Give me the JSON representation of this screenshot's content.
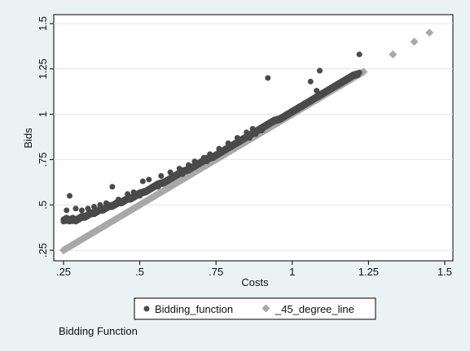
{
  "chart_data": {
    "type": "scatter",
    "xlabel": "Costs",
    "ylabel": "Bids",
    "note": "Bidding Function",
    "xlim": [
      0.25,
      1.5
    ],
    "ylim": [
      0.25,
      1.5
    ],
    "x_ticks": [
      0.25,
      0.5,
      0.75,
      1,
      1.25,
      1.5
    ],
    "x_tick_labels": [
      ".25",
      ".5",
      ".75",
      "1",
      "1.25",
      "1.5"
    ],
    "y_ticks": [
      0.25,
      0.5,
      0.75,
      1,
      1.25,
      1.5
    ],
    "y_tick_labels": [
      ".25",
      ".5",
      ".75",
      "1",
      "1.25",
      "1.5"
    ],
    "grid": "horizontal",
    "legend_position": "bottom",
    "series": [
      {
        "name": "Bidding_function",
        "marker": "circle",
        "color": "#4a4a4a",
        "points": [
          [
            0.25,
            0.42
          ],
          [
            0.26,
            0.43
          ],
          [
            0.27,
            0.42
          ],
          [
            0.28,
            0.43
          ],
          [
            0.29,
            0.42
          ],
          [
            0.3,
            0.43
          ],
          [
            0.31,
            0.44
          ],
          [
            0.32,
            0.44
          ],
          [
            0.33,
            0.45
          ],
          [
            0.34,
            0.46
          ],
          [
            0.35,
            0.46
          ],
          [
            0.36,
            0.47
          ],
          [
            0.37,
            0.48
          ],
          [
            0.38,
            0.48
          ],
          [
            0.39,
            0.49
          ],
          [
            0.4,
            0.5
          ],
          [
            0.41,
            0.5
          ],
          [
            0.42,
            0.51
          ],
          [
            0.43,
            0.52
          ],
          [
            0.44,
            0.52
          ],
          [
            0.45,
            0.53
          ],
          [
            0.46,
            0.54
          ],
          [
            0.47,
            0.54
          ],
          [
            0.48,
            0.55
          ],
          [
            0.49,
            0.56
          ],
          [
            0.5,
            0.57
          ],
          [
            0.52,
            0.58
          ],
          [
            0.54,
            0.6
          ],
          [
            0.56,
            0.62
          ],
          [
            0.58,
            0.63
          ],
          [
            0.6,
            0.65
          ],
          [
            0.62,
            0.67
          ],
          [
            0.64,
            0.69
          ],
          [
            0.66,
            0.7
          ],
          [
            0.68,
            0.72
          ],
          [
            0.7,
            0.74
          ],
          [
            0.72,
            0.76
          ],
          [
            0.74,
            0.77
          ],
          [
            0.76,
            0.79
          ],
          [
            0.78,
            0.81
          ],
          [
            0.8,
            0.83
          ],
          [
            0.82,
            0.85
          ],
          [
            0.84,
            0.87
          ],
          [
            0.86,
            0.89
          ],
          [
            0.88,
            0.91
          ],
          [
            0.9,
            0.93
          ],
          [
            0.92,
            0.95
          ],
          [
            0.94,
            0.97
          ],
          [
            0.96,
            0.98
          ],
          [
            0.98,
            1.0
          ],
          [
            1.0,
            1.02
          ],
          [
            1.02,
            1.04
          ],
          [
            1.04,
            1.06
          ],
          [
            1.06,
            1.08
          ],
          [
            1.08,
            1.1
          ],
          [
            1.1,
            1.12
          ],
          [
            1.12,
            1.14
          ],
          [
            1.14,
            1.16
          ],
          [
            1.16,
            1.18
          ],
          [
            1.18,
            1.2
          ],
          [
            1.2,
            1.22
          ],
          [
            1.22,
            1.23
          ],
          [
            0.25,
            0.41
          ],
          [
            0.26,
            0.41
          ],
          [
            0.27,
            0.41
          ],
          [
            0.28,
            0.41
          ],
          [
            0.3,
            0.42
          ],
          [
            0.32,
            0.43
          ],
          [
            0.34,
            0.45
          ],
          [
            0.36,
            0.46
          ],
          [
            0.38,
            0.47
          ],
          [
            0.4,
            0.49
          ],
          [
            0.42,
            0.5
          ],
          [
            0.44,
            0.51
          ],
          [
            0.46,
            0.53
          ],
          [
            0.48,
            0.54
          ],
          [
            0.5,
            0.55
          ],
          [
            0.52,
            0.57
          ],
          [
            0.54,
            0.59
          ],
          [
            0.56,
            0.6
          ],
          [
            0.58,
            0.62
          ],
          [
            0.6,
            0.64
          ],
          [
            0.62,
            0.66
          ],
          [
            0.64,
            0.67
          ],
          [
            0.66,
            0.69
          ],
          [
            0.68,
            0.71
          ],
          [
            0.7,
            0.73
          ],
          [
            0.72,
            0.74
          ],
          [
            0.74,
            0.76
          ],
          [
            0.76,
            0.78
          ],
          [
            0.78,
            0.8
          ],
          [
            0.8,
            0.82
          ],
          [
            0.82,
            0.84
          ],
          [
            0.84,
            0.86
          ],
          [
            0.86,
            0.87
          ],
          [
            0.88,
            0.89
          ],
          [
            0.9,
            0.91
          ],
          [
            0.27,
            0.55
          ],
          [
            0.26,
            0.47
          ],
          [
            0.29,
            0.48
          ],
          [
            0.31,
            0.47
          ],
          [
            0.33,
            0.48
          ],
          [
            0.35,
            0.49
          ],
          [
            0.37,
            0.5
          ],
          [
            0.39,
            0.51
          ],
          [
            0.41,
            0.6
          ],
          [
            0.43,
            0.53
          ],
          [
            0.46,
            0.56
          ],
          [
            0.48,
            0.57
          ],
          [
            0.51,
            0.63
          ],
          [
            0.53,
            0.64
          ],
          [
            0.57,
            0.66
          ],
          [
            0.6,
            0.68
          ],
          [
            0.63,
            0.7
          ],
          [
            0.66,
            0.72
          ],
          [
            0.68,
            0.74
          ],
          [
            0.71,
            0.76
          ],
          [
            0.73,
            0.78
          ],
          [
            0.76,
            0.81
          ],
          [
            0.79,
            0.84
          ],
          [
            0.82,
            0.87
          ],
          [
            0.85,
            0.9
          ],
          [
            0.87,
            0.92
          ],
          [
            0.92,
            1.2
          ],
          [
            1.06,
            1.18
          ],
          [
            1.08,
            1.13
          ],
          [
            1.09,
            1.24
          ],
          [
            1.22,
            1.33
          ]
        ]
      },
      {
        "name": "_45_degree_line",
        "marker": "diamond",
        "color": "#a8a8a8",
        "points": [
          [
            0.25,
            0.25
          ],
          [
            0.3,
            0.3
          ],
          [
            0.35,
            0.35
          ],
          [
            0.4,
            0.4
          ],
          [
            0.45,
            0.45
          ],
          [
            0.5,
            0.5
          ],
          [
            0.55,
            0.55
          ],
          [
            0.6,
            0.6
          ],
          [
            0.65,
            0.65
          ],
          [
            0.7,
            0.7
          ],
          [
            0.75,
            0.75
          ],
          [
            0.8,
            0.8
          ],
          [
            0.85,
            0.85
          ],
          [
            0.9,
            0.9
          ],
          [
            0.95,
            0.95
          ],
          [
            1.0,
            1.0
          ],
          [
            1.05,
            1.05
          ],
          [
            1.1,
            1.1
          ],
          [
            1.13,
            1.13
          ],
          [
            1.16,
            1.16
          ],
          [
            1.19,
            1.19
          ],
          [
            1.22,
            1.22
          ],
          [
            1.23,
            1.23
          ],
          [
            1.33,
            1.33
          ],
          [
            1.4,
            1.4
          ],
          [
            1.45,
            1.45
          ]
        ]
      }
    ]
  }
}
